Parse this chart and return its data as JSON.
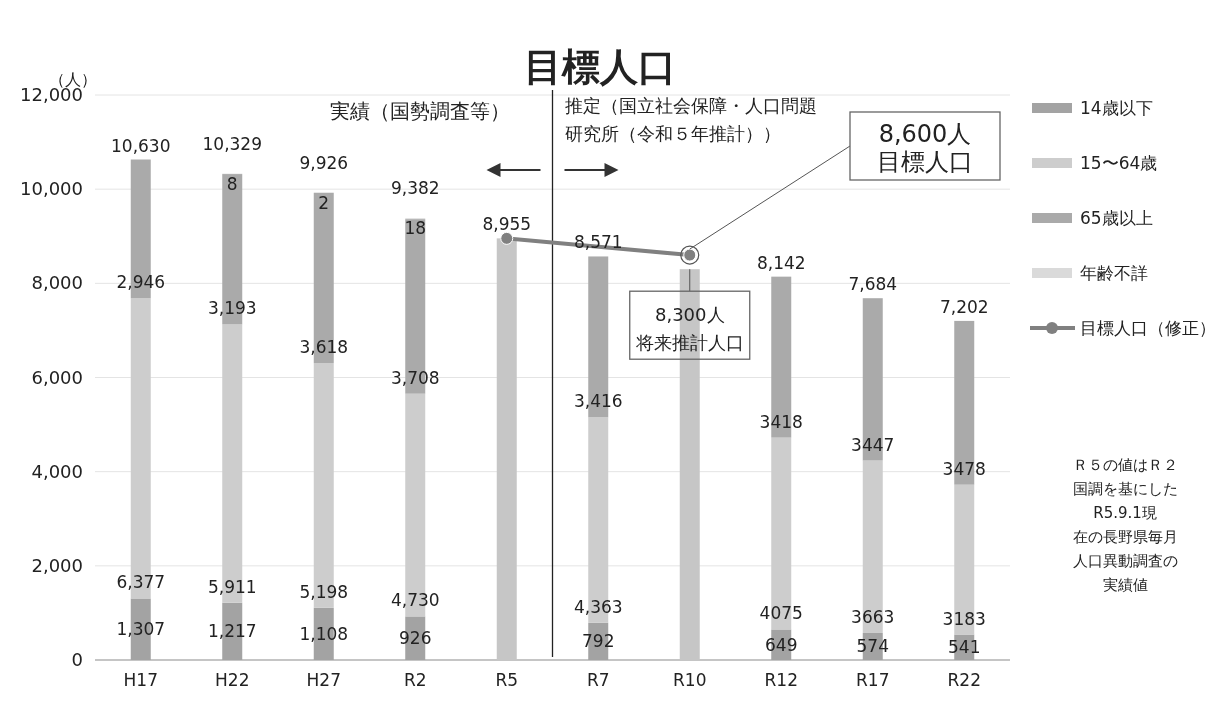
{
  "chart_data": {
    "type": "bar",
    "title": "目標人口",
    "ylabel": "（人）",
    "stacked": true,
    "categories": [
      "H17",
      "H22",
      "H27",
      "R2",
      "R5",
      "R7",
      "R10",
      "R12",
      "R17",
      "R22"
    ],
    "series": [
      {
        "name": "14歳以下",
        "color": "#a3a3a3",
        "values": [
          1307,
          1217,
          1108,
          926,
          null,
          792,
          null,
          649,
          574,
          541
        ],
        "value_labels": [
          "1,307",
          "1,217",
          "1,108",
          "926",
          null,
          "792",
          null,
          "649",
          "574",
          "541"
        ]
      },
      {
        "name": "15〜64歳",
        "color": "#cdcdcd",
        "values": [
          6377,
          5911,
          5198,
          4730,
          null,
          4363,
          null,
          4075,
          3663,
          3183
        ],
        "value_labels": [
          "6,377",
          "5,911",
          "5,198",
          "4,730",
          null,
          "4,363",
          null,
          "4075",
          "3663",
          "3183"
        ]
      },
      {
        "name": "65歳以上",
        "color": "#aaaaaa",
        "values": [
          2946,
          3193,
          3618,
          3708,
          null,
          3416,
          null,
          3418,
          3447,
          3478
        ],
        "value_labels": [
          "2,946",
          "3,193",
          "3,618",
          "3,708",
          null,
          "3,416",
          null,
          "3418",
          "3447",
          "3478"
        ]
      },
      {
        "name": "年齢不詳",
        "color": "#dadada",
        "values": [
          null,
          8,
          2,
          18,
          null,
          null,
          null,
          null,
          null,
          null
        ],
        "value_labels": [
          null,
          "8",
          "2",
          "18",
          null,
          null,
          null,
          null,
          null,
          null
        ]
      },
      {
        "color": "#c6c6c6",
        "values": [
          null,
          null,
          null,
          null,
          8955,
          null,
          8300,
          null,
          null,
          null
        ]
      },
      {
        "name": "目標人口（修正）",
        "type": "line",
        "color": "#808080",
        "marker": "circle",
        "values": [
          null,
          null,
          null,
          null,
          8955,
          null,
          8600,
          null,
          null,
          null
        ]
      }
    ],
    "totals": [
      "10,630",
      "10,329",
      "9,926",
      "9,382",
      "8,955",
      "8,571",
      null,
      "8,142",
      "7,684",
      "7,202"
    ],
    "ylim": [
      0,
      12000
    ],
    "yticks": [
      0,
      {
        "value": 2000,
        "label": "2,000"
      },
      {
        "value": 4000,
        "label": "4,000"
      },
      {
        "value": 6000,
        "label": "6,000"
      },
      {
        "value": 8000,
        "label": "8,000"
      },
      {
        "value": 10000,
        "label": "10,000"
      },
      {
        "value": 12000,
        "label": "12,000"
      }
    ],
    "grid": "y",
    "legend": "right",
    "ref_lines": [
      {
        "axis": "x",
        "value": "R5",
        "color": "#222222"
      }
    ],
    "annotations": [
      "実績（国勢調査等）",
      "推定（国立社会保障・人口問題研究所（令和５年推計））",
      {
        "text": "8,600人目標人口",
        "x": "R10",
        "y": 8600
      },
      {
        "text": "8,300人将来推計人口",
        "x": "R10",
        "y": 8300
      },
      "Ｒ５の値はＲ２国調を基にしたR5.9.1現在の長野県毎月人口異動調査の実績値"
    ]
  }
}
